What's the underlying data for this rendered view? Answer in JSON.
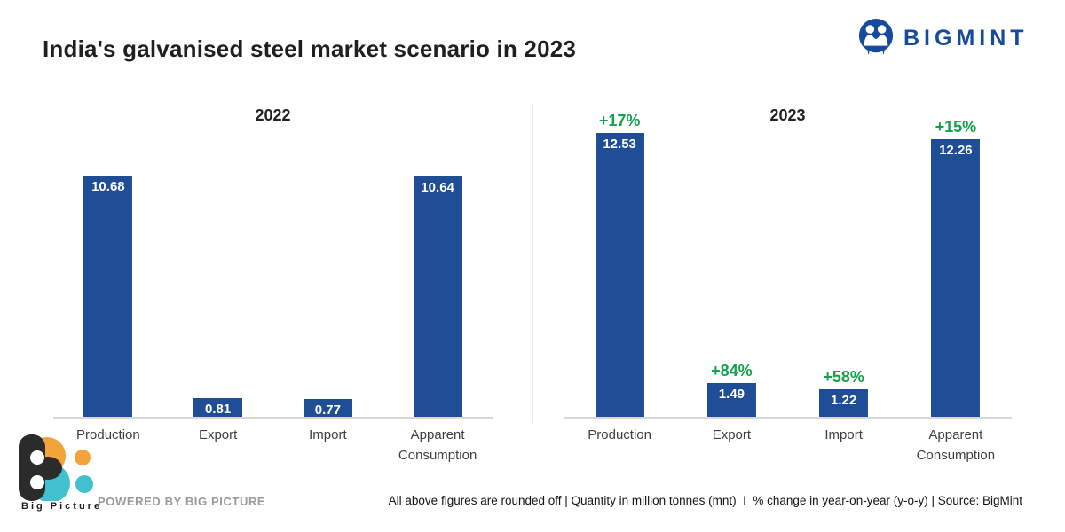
{
  "header": {
    "title": "India's galvanised steel market scenario in 2023",
    "bigmint_logo_text": "BIGMINT"
  },
  "chart_data": [
    {
      "type": "bar",
      "title": "2022",
      "categories": [
        "Production",
        "Export",
        "Import",
        "Apparent Consumption"
      ],
      "values": [
        10.68,
        0.81,
        0.77,
        10.64
      ],
      "value_labels": [
        "10.68",
        "0.81",
        "0.77",
        "10.64"
      ],
      "pct_change": [
        null,
        null,
        null,
        null
      ],
      "ylim": [
        0,
        14
      ],
      "unit": "million tonnes (mnt)",
      "grid": false,
      "legend": "none"
    },
    {
      "type": "bar",
      "title": "2023",
      "categories": [
        "Production",
        "Export",
        "Import",
        "Apparent Consumption"
      ],
      "values": [
        12.53,
        1.49,
        1.22,
        12.26
      ],
      "value_labels": [
        "12.53",
        "1.49",
        "1.22",
        "12.26"
      ],
      "pct_change": [
        "+17%",
        "+84%",
        "+58%",
        "+15%"
      ],
      "ylim": [
        0,
        14
      ],
      "unit": "million tonnes (mnt)",
      "grid": false,
      "legend": "none"
    }
  ],
  "footer": {
    "big_picture_label": "Big Picture",
    "powered_by": "POWERED BY BIG PICTURE",
    "note": "All above figures are rounded off | Quantity in million tonnes (mnt)  I  % change in year-on-year (y-o-y) | Source: BigMint"
  },
  "colors": {
    "bar_blue": "#1f4e96",
    "positive_green": "#13a24c",
    "bigmint_blue": "#164a9c",
    "axis_line": "#d8d8d8",
    "divider": "#e9e9e9",
    "bp_orange": "#f2a339",
    "bp_teal": "#41c0ce",
    "bp_black": "#2b2b2b"
  }
}
